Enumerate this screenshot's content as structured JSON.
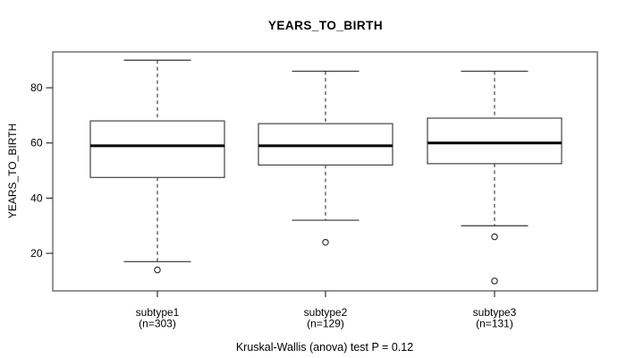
{
  "window": {
    "background_color": "#ffffff",
    "text_color": "#000000"
  },
  "chart_data": {
    "type": "boxplot",
    "title": "YEARS_TO_BIRTH",
    "ylabel": "YEARS_TO_BIRTH",
    "xlabel": "",
    "caption": "Kruskal-Wallis (anova) test P = 0.12",
    "ylim": [
      6.4,
      93
    ],
    "yticks": [
      20,
      40,
      60,
      80
    ],
    "grid": false,
    "legend_position": "none",
    "colors": {
      "plot_border": "#666666",
      "box_border": "#444444",
      "median_line": "#000000",
      "whisker": "#333333",
      "background": "#ffffff"
    },
    "groups": [
      {
        "label": "subtype1",
        "sublabel": "(n=303)",
        "n": 303,
        "whisker_low": 17,
        "q1": 47.5,
        "median": 59,
        "q3": 68,
        "whisker_high": 90,
        "outliers": [
          14
        ]
      },
      {
        "label": "subtype2",
        "sublabel": "(n=129)",
        "n": 129,
        "whisker_low": 32,
        "q1": 52,
        "median": 59,
        "q3": 67,
        "whisker_high": 86,
        "outliers": [
          24
        ]
      },
      {
        "label": "subtype3",
        "sublabel": "(n=131)",
        "n": 131,
        "whisker_low": 30,
        "q1": 52.5,
        "median": 60,
        "q3": 69,
        "whisker_high": 86,
        "outliers": [
          26,
          10
        ]
      }
    ]
  }
}
